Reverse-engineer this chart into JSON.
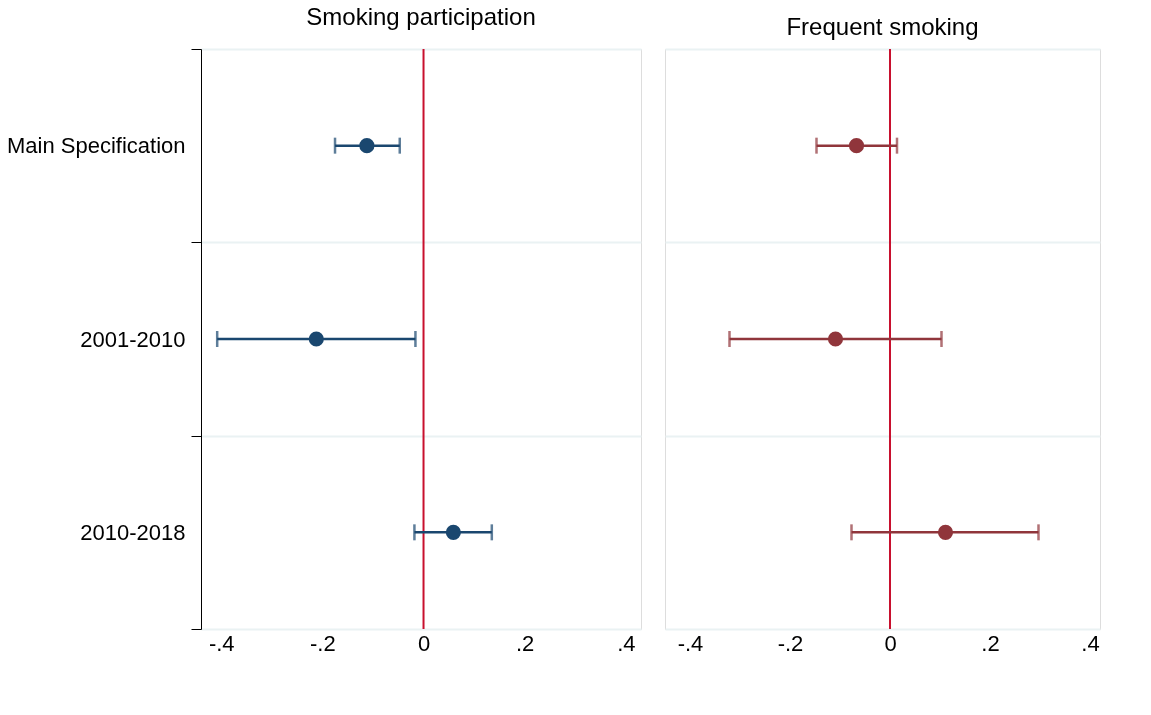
{
  "chart_data": [
    {
      "type": "scatter",
      "title": "Smoking participation",
      "categories": [
        "Main Specification",
        "2001-2010",
        "2010-2018"
      ],
      "series": [
        {
          "color": "#1a476f",
          "values": [
            -0.112,
            -0.212,
            0.059
          ],
          "errors": [
            [
              -0.175,
              -0.047
            ],
            [
              -0.408,
              -0.016
            ],
            [
              -0.018,
              0.135
            ]
          ]
        }
      ],
      "xlim": [
        -0.44,
        0.43
      ],
      "xticks": [
        {
          "value": -0.4,
          "label": "-.4"
        },
        {
          "value": -0.2,
          "label": "-.2"
        },
        0,
        {
          "value": 0.2,
          "label": ".2"
        },
        {
          "value": 0.4,
          "label": ".4"
        }
      ],
      "ref_lines": [
        {
          "axis": "x",
          "value": 0,
          "color": "#c8102e"
        }
      ],
      "grid": "y",
      "marker": "circle",
      "orientation": "horizontal"
    },
    {
      "type": "scatter",
      "title": "Frequent smoking",
      "categories": [
        null,
        null,
        null
      ],
      "series": [
        {
          "color": "#90353b",
          "values": [
            -0.067,
            -0.109,
            0.111
          ],
          "errors": [
            [
              -0.147,
              0.014
            ],
            [
              -0.321,
              0.103
            ],
            [
              -0.077,
              0.297
            ]
          ]
        }
      ],
      "xlim": [
        -0.45,
        0.42
      ],
      "xticks": [
        {
          "value": -0.4,
          "label": "-.4"
        },
        {
          "value": -0.2,
          "label": "-.2"
        },
        0,
        {
          "value": 0.2,
          "label": ".2"
        },
        {
          "value": 0.4,
          "label": ".4"
        }
      ],
      "ref_lines": [
        {
          "axis": "x",
          "value": 0,
          "color": "#c8102e"
        }
      ],
      "grid": "y",
      "marker": "circle",
      "orientation": "horizontal",
      "tick_labels": "x"
    }
  ]
}
